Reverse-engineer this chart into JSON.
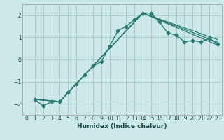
{
  "xlabel": "Humidex (Indice chaleur)",
  "ylabel": "",
  "bg_color": "#cce8e8",
  "grid_color": "#aacccc",
  "line_color": "#2a7a72",
  "ylim": [
    -2.5,
    2.5
  ],
  "xlim": [
    -0.5,
    23.5
  ],
  "yticks": [
    -2,
    -1,
    0,
    1,
    2
  ],
  "xticks": [
    0,
    1,
    2,
    3,
    4,
    5,
    6,
    7,
    8,
    9,
    10,
    11,
    12,
    13,
    14,
    15,
    16,
    17,
    18,
    19,
    20,
    21,
    22,
    23
  ],
  "series": [
    {
      "x": [
        1,
        2,
        3,
        4,
        5,
        6,
        7,
        8,
        9,
        10,
        11,
        12,
        13,
        14,
        15,
        16,
        17,
        18,
        19,
        20,
        21,
        22,
        23
      ],
      "y": [
        -1.8,
        -2.1,
        -1.9,
        -1.9,
        -1.5,
        -1.1,
        -0.7,
        -0.3,
        -0.1,
        0.6,
        1.3,
        1.5,
        1.8,
        2.1,
        2.1,
        1.7,
        1.2,
        1.1,
        0.8,
        0.85,
        0.8,
        0.95,
        0.7
      ],
      "marker": "D",
      "markersize": 2.5,
      "linewidth": 1.0,
      "has_marker": true
    },
    {
      "x": [
        1,
        4,
        14,
        23
      ],
      "y": [
        -1.8,
        -1.9,
        2.1,
        0.65
      ],
      "marker": null,
      "markersize": 0,
      "linewidth": 0.9,
      "has_marker": false
    },
    {
      "x": [
        1,
        4,
        14,
        23
      ],
      "y": [
        -1.8,
        -1.9,
        2.1,
        0.78
      ],
      "marker": null,
      "markersize": 0,
      "linewidth": 0.9,
      "has_marker": false
    },
    {
      "x": [
        1,
        4,
        14,
        23
      ],
      "y": [
        -1.8,
        -1.9,
        2.1,
        0.9
      ],
      "marker": null,
      "markersize": 0,
      "linewidth": 0.9,
      "has_marker": false
    }
  ],
  "xlabel_fontsize": 6.5,
  "xlabel_color": "#1a4a48",
  "tick_fontsize": 5.5,
  "tick_color": "#1a4a48"
}
